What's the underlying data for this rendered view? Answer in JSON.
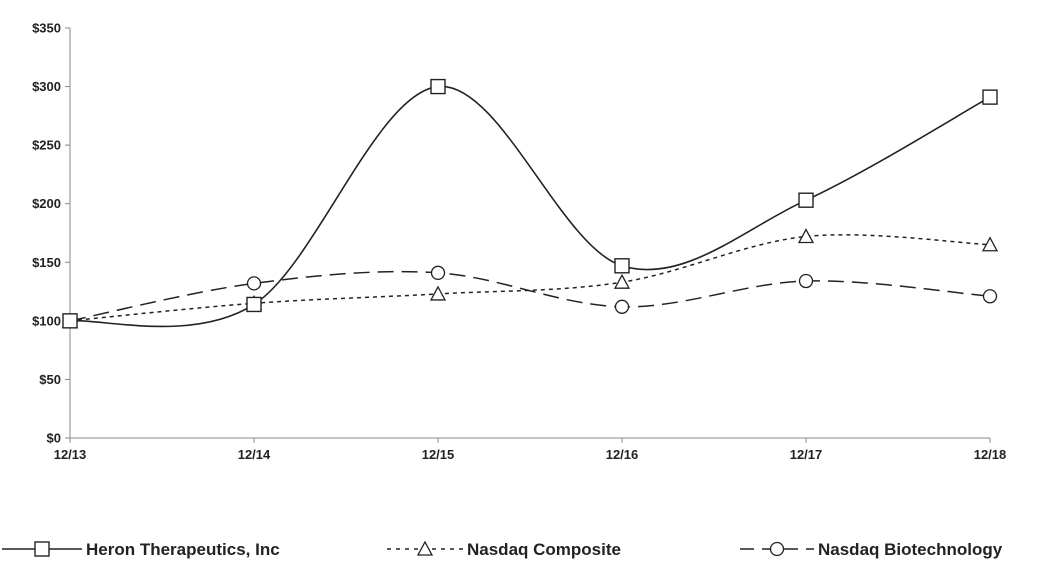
{
  "chart_data": {
    "type": "line",
    "categories": [
      "12/13",
      "12/14",
      "12/15",
      "12/16",
      "12/17",
      "12/18"
    ],
    "ylim": [
      0,
      350
    ],
    "yticks": [
      0,
      50,
      100,
      150,
      200,
      250,
      300,
      350
    ],
    "ytick_labels": [
      "$0",
      "$50",
      "$100",
      "$150",
      "$200",
      "$250",
      "$300",
      "$350"
    ],
    "grid": false,
    "legend_position": "bottom",
    "series": [
      {
        "name": "Heron Therapeutics, Inc",
        "legend_label": "—⊟— Heron Therapeutics, Inc",
        "values": [
          100,
          114,
          300,
          147,
          203,
          291
        ],
        "marker": "square",
        "dash": "solid",
        "color": "#222222"
      },
      {
        "name": "Nasdaq Composite",
        "legend_label": "- - △ - - Nasdaq Composite",
        "values": [
          100,
          115,
          123,
          133,
          172,
          165
        ],
        "marker": "triangle",
        "dash": "short-dash",
        "color": "#222222"
      },
      {
        "name": "Nasdaq Biotechnology",
        "legend_label": "— ⊖ - Nasdaq Biotechnology",
        "values": [
          100,
          132,
          141,
          112,
          134,
          121
        ],
        "marker": "circle",
        "dash": "long-dash",
        "color": "#222222"
      }
    ]
  }
}
